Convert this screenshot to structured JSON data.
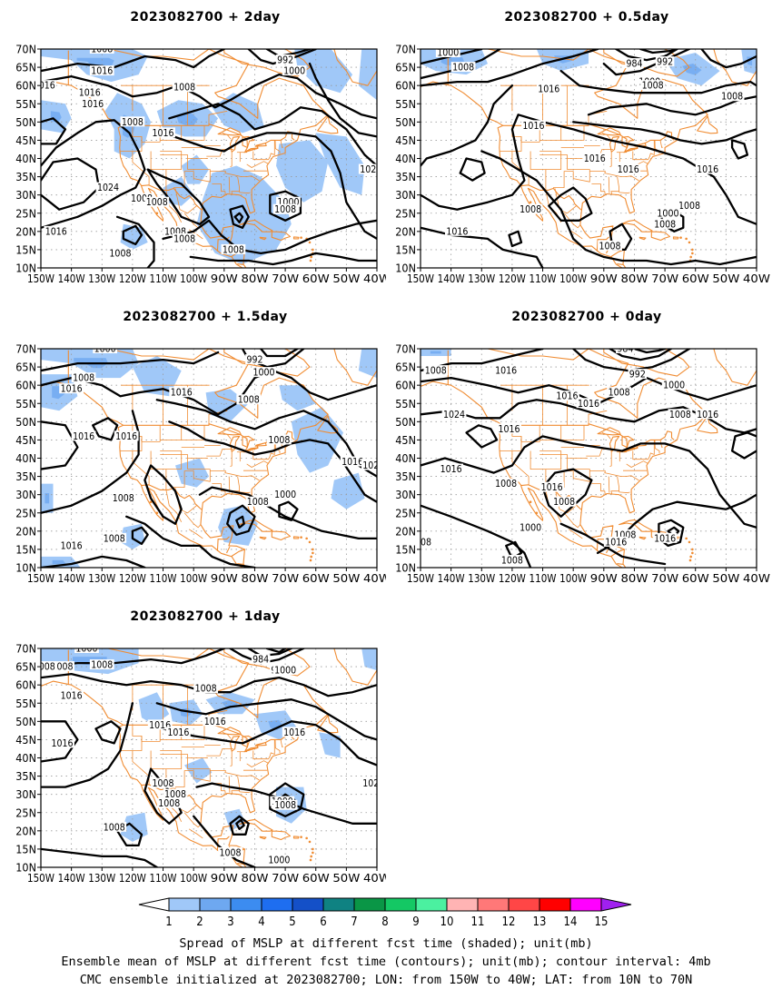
{
  "panels": [
    {
      "id": "p2day",
      "title": "2023082700 + 2day"
    },
    {
      "id": "p05day",
      "title": "2023082700 + 0.5day"
    },
    {
      "id": "p15day",
      "title": "2023082700 + 1.5day"
    },
    {
      "id": "p0day",
      "title": "2023082700 + 0day"
    },
    {
      "id": "p1day",
      "title": "2023082700 + 1day"
    }
  ],
  "lat_labels": [
    "70N",
    "65N",
    "60N",
    "55N",
    "50N",
    "45N",
    "40N",
    "35N",
    "30N",
    "25N",
    "20N",
    "15N",
    "10N"
  ],
  "lon_labels": [
    "150W",
    "140W",
    "130W",
    "120W",
    "110W",
    "100W",
    "90W",
    "80W",
    "70W",
    "60W",
    "50W",
    "40W"
  ],
  "contour_labels": {
    "p2day": [
      "1008",
      "992",
      "1000",
      "1016",
      "016",
      "1008",
      "1016",
      "1016",
      "1008",
      "1016",
      "1024",
      "1024",
      "1008",
      "1008",
      "1000",
      "1008",
      "1016",
      "1008",
      "1008",
      "1008",
      "1008"
    ],
    "p05day": [
      "1000",
      "1008",
      "984",
      "992",
      "1000",
      "1008",
      "1016",
      "1008",
      "1016",
      "1016",
      "1016",
      "1008",
      "1008",
      "1016",
      "1000",
      "1008",
      "1016",
      "1008"
    ],
    "p15day": [
      "1000",
      "1008",
      "992",
      "1000",
      "1016",
      "1008",
      "1016",
      "1016",
      "1016",
      "1008",
      "1008",
      "1000",
      "1008",
      "1016",
      "1008",
      "1016",
      "102"
    ],
    "p0day": [
      "984",
      "1008",
      "1016",
      "992",
      "1000",
      "1008",
      "1016",
      "1016",
      "1024",
      "1016",
      "1016",
      "1008",
      "1016",
      "1008",
      "1016",
      "1008",
      "1000",
      "1008",
      "1016",
      "1008",
      "1008",
      "1016"
    ],
    "p1day": [
      "1000",
      "1008",
      "984",
      "992",
      "1000",
      "008",
      "1008",
      "1016",
      "1016",
      "1008",
      "1016",
      "1016",
      "1016",
      "1016",
      "1008",
      "1008",
      "1008",
      "1008",
      "1000",
      "1008",
      "1008",
      "1000",
      "102"
    ]
  },
  "colorbar": {
    "ticks": [
      "1",
      "2",
      "3",
      "4",
      "5",
      "6",
      "7",
      "8",
      "9",
      "10",
      "11",
      "12",
      "13",
      "14",
      "15"
    ],
    "colors": [
      "#ffffff",
      "#a0c8f8",
      "#6ea8f0",
      "#3c8cf0",
      "#1e6ef0",
      "#1450c8",
      "#0f8282",
      "#0a9646",
      "#14c864",
      "#4bf0a0",
      "#ffb4b4",
      "#ff7878",
      "#ff4646",
      "#ff0000",
      "#ff00ff",
      "#a020f0"
    ]
  },
  "caption": {
    "line1": "Spread of MSLP at different fcst time (shaded); unit(mb)",
    "line2": "Ensemble mean of MSLP at different fcst time (contours); unit(mb); contour interval: 4mb",
    "line3": "CMC ensemble initialized at 2023082700; LON: from 150W to 40W; LAT: from 10N to 70N"
  }
}
